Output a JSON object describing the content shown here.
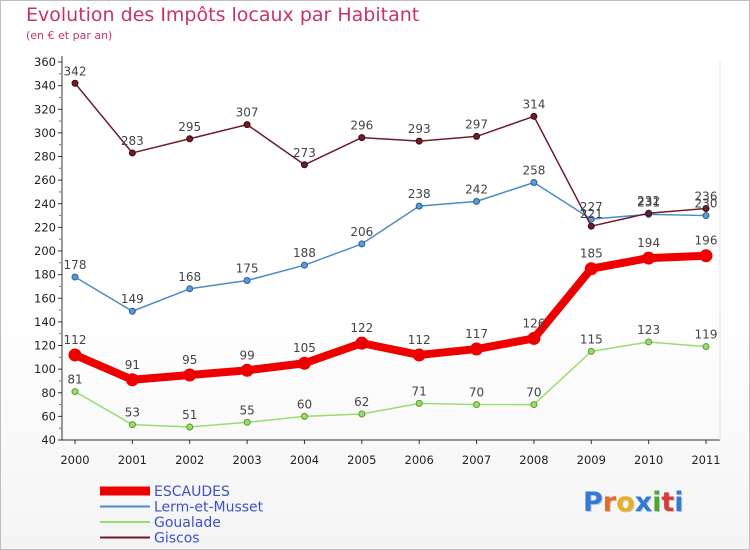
{
  "title": "Evolution des Impôts locaux par Habitant",
  "subtitle": "(en € et par an)",
  "logo": {
    "text": "Proxiti",
    "letters": [
      "P",
      "r",
      "o",
      "x",
      "i",
      "t",
      "i"
    ],
    "colors": [
      "#2f7bd6",
      "#e36a2a",
      "#e8b020",
      "#2f7bd6",
      "#4aa83a",
      "#d63a3a",
      "#2f7bd6"
    ]
  },
  "chart_data": {
    "type": "line",
    "title": "Evolution des Impôts locaux par Habitant",
    "subtitle": "(en € et par an)",
    "xlabel": "",
    "ylabel": "",
    "ylim": [
      40,
      360
    ],
    "ytick_step": 20,
    "categories": [
      "2000",
      "2001",
      "2002",
      "2003",
      "2004",
      "2005",
      "2006",
      "2007",
      "2008",
      "2009",
      "2010",
      "2011"
    ],
    "series": [
      {
        "name": "ESCAUDES",
        "color": "#ee0000",
        "values": [
          112,
          91,
          95,
          99,
          105,
          122,
          112,
          117,
          126,
          185,
          194,
          196
        ]
      },
      {
        "name": "Lerm-et-Musset",
        "color": "#4a8cc8",
        "values": [
          178,
          149,
          168,
          175,
          188,
          206,
          238,
          242,
          258,
          227,
          231,
          230
        ]
      },
      {
        "name": "Goualade",
        "color": "#9bdc6e",
        "values": [
          81,
          53,
          51,
          55,
          60,
          62,
          71,
          70,
          70,
          115,
          123,
          119
        ]
      },
      {
        "name": "Giscos",
        "color": "#6b1e2a",
        "values": [
          342,
          283,
          295,
          307,
          273,
          296,
          293,
          297,
          314,
          221,
          232,
          236
        ]
      }
    ],
    "legend": "bottom-left",
    "grid": false
  }
}
